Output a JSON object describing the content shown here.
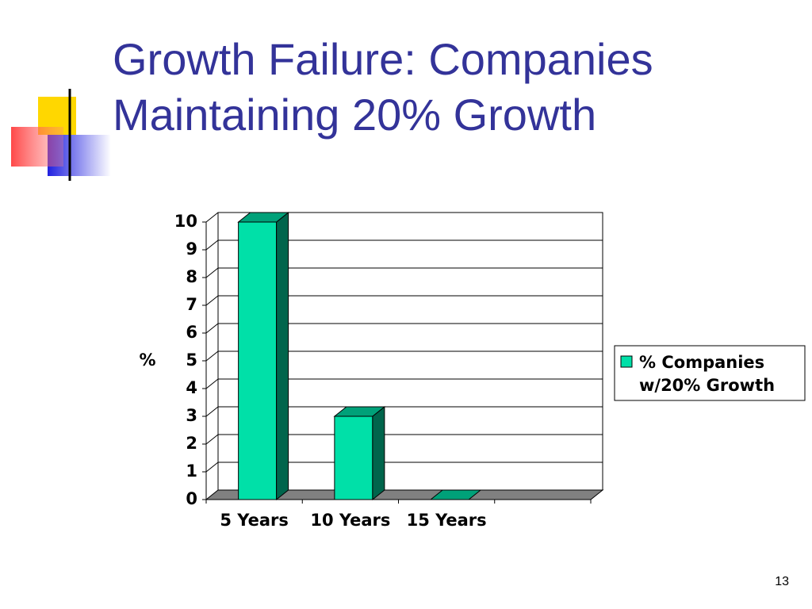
{
  "chart_data": {
    "type": "bar",
    "title": "Growth Failure: Companies Maintaining 20% Growth",
    "y_label": "%",
    "categories": [
      "5 Years",
      "10 Years",
      "15 Years",
      null
    ],
    "series": [
      {
        "name": "% Companies w/20% Growth",
        "color": "#00e0a8",
        "values": [
          10,
          3,
          0,
          null
        ]
      }
    ],
    "ylim": [
      0,
      10
    ],
    "yticks": [
      0,
      1,
      2,
      3,
      4,
      5,
      6,
      7,
      8,
      9,
      10
    ],
    "grid": true,
    "legend": "right"
  },
  "page_number": "13"
}
